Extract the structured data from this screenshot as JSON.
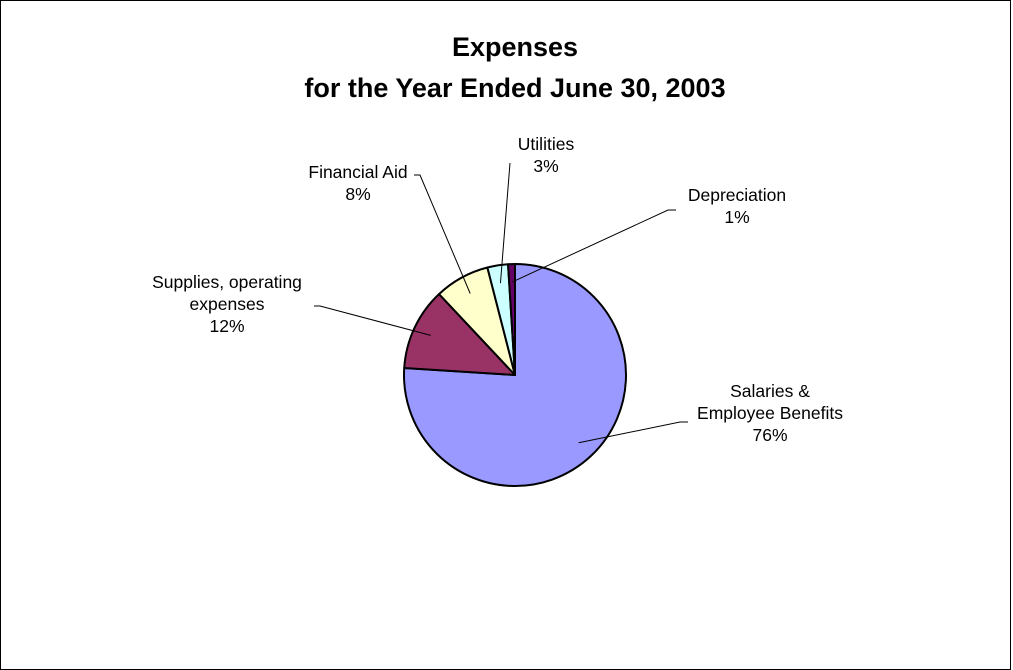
{
  "chart_data": {
    "type": "pie",
    "title": [
      "Expenses",
      "for the Year Ended June 30, 2003"
    ],
    "slices": [
      {
        "label": [
          "Salaries &",
          "Employee Benefits"
        ],
        "value": 76,
        "percent_label": "76%",
        "color": "#9999ff"
      },
      {
        "label": [
          "Supplies, operating",
          "expenses"
        ],
        "value": 12,
        "percent_label": "12%",
        "color": "#993366"
      },
      {
        "label": [
          "Financial Aid"
        ],
        "value": 8,
        "percent_label": "8%",
        "color": "#ffffcc"
      },
      {
        "label": [
          "Utilities"
        ],
        "value": 3,
        "percent_label": "3%",
        "color": "#ccffff"
      },
      {
        "label": [
          "Depreciation"
        ],
        "value": 1,
        "percent_label": "1%",
        "color": "#660066"
      }
    ],
    "legend": "none",
    "start_angle_deg": 0,
    "direction": "clockwise"
  },
  "colors": {
    "outline": "#000000",
    "background": "#ffffff"
  }
}
